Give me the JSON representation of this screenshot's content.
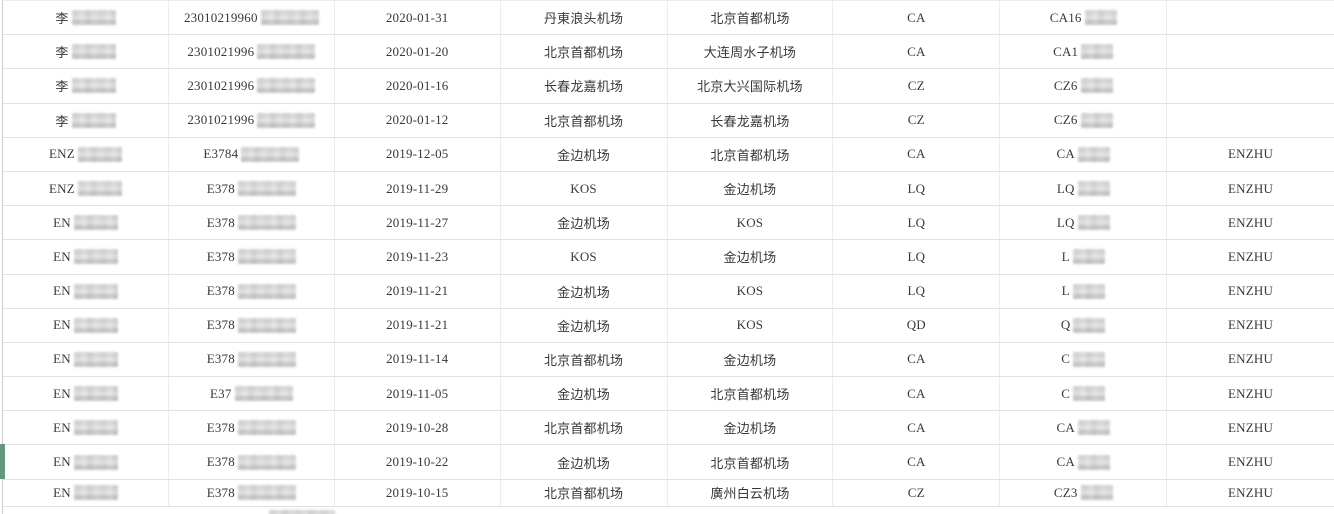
{
  "app": {
    "description": "flight-records-table",
    "colors": {
      "row_marker_green": "#66997b",
      "grid_border": "#e2e2e2",
      "text": "#383838",
      "background": "#ffffff"
    }
  },
  "table": {
    "columns": [
      {
        "key": "name",
        "semantic": "passenger-name"
      },
      {
        "key": "idnum",
        "semantic": "id-number"
      },
      {
        "key": "date",
        "semantic": "flight-date"
      },
      {
        "key": "dep",
        "semantic": "departure-airport"
      },
      {
        "key": "arr",
        "semantic": "arrival-airport"
      },
      {
        "key": "airline",
        "semantic": "airline-code"
      },
      {
        "key": "flight",
        "semantic": "flight-number"
      },
      {
        "key": "agent",
        "semantic": "agent-code"
      }
    ],
    "rows": [
      {
        "name": "李",
        "name_redacted": true,
        "idnum": "23010219960",
        "id_redacted": true,
        "date": "2020-01-31",
        "dep": "丹東浪头机场",
        "arr": "北京首都机场",
        "airline": "CA",
        "flight": "CA16",
        "flight_redacted": true,
        "agent": "",
        "marker": false
      },
      {
        "name": "李",
        "name_redacted": true,
        "idnum": "2301021996",
        "id_redacted": true,
        "date": "2020-01-20",
        "dep": "北京首都机场",
        "arr": "大连周水子机场",
        "airline": "CA",
        "flight": "CA1",
        "flight_redacted": true,
        "agent": "",
        "marker": false
      },
      {
        "name": "李",
        "name_redacted": true,
        "idnum": "2301021996",
        "id_redacted": true,
        "date": "2020-01-16",
        "dep": "长春龙嘉机场",
        "arr": "北京大兴国际机场",
        "airline": "CZ",
        "flight": "CZ6",
        "flight_redacted": true,
        "agent": "",
        "marker": false
      },
      {
        "name": "李",
        "name_redacted": true,
        "idnum": "2301021996",
        "id_redacted": true,
        "date": "2020-01-12",
        "dep": "北京首都机场",
        "arr": "长春龙嘉机场",
        "airline": "CZ",
        "flight": "CZ6",
        "flight_redacted": true,
        "agent": "",
        "marker": false
      },
      {
        "name": "ENZ",
        "name_redacted": true,
        "idnum": "E3784",
        "id_redacted": true,
        "date": "2019-12-05",
        "dep": "金边机场",
        "arr": "北京首都机场",
        "airline": "CA",
        "flight": "CA",
        "flight_redacted": true,
        "agent": "ENZHU",
        "marker": false
      },
      {
        "name": "ENZ",
        "name_redacted": true,
        "idnum": "E378",
        "id_redacted": true,
        "date": "2019-11-29",
        "dep": "KOS",
        "arr": "金边机场",
        "airline": "LQ",
        "flight": "LQ",
        "flight_redacted": true,
        "agent": "ENZHU",
        "marker": false
      },
      {
        "name": "EN",
        "name_redacted": true,
        "idnum": "E378",
        "id_redacted": true,
        "date": "2019-11-27",
        "dep": "金边机场",
        "arr": "KOS",
        "airline": "LQ",
        "flight": "LQ",
        "flight_redacted": true,
        "agent": "ENZHU",
        "marker": false
      },
      {
        "name": "EN",
        "name_redacted": true,
        "idnum": "E378",
        "id_redacted": true,
        "date": "2019-11-23",
        "dep": "KOS",
        "arr": "金边机场",
        "airline": "LQ",
        "flight": "L",
        "flight_redacted": true,
        "agent": "ENZHU",
        "marker": false
      },
      {
        "name": "EN",
        "name_redacted": true,
        "idnum": "E378",
        "id_redacted": true,
        "date": "2019-11-21",
        "dep": "金边机场",
        "arr": "KOS",
        "airline": "LQ",
        "flight": "L",
        "flight_redacted": true,
        "agent": "ENZHU",
        "marker": false
      },
      {
        "name": "EN",
        "name_redacted": true,
        "idnum": "E378",
        "id_redacted": true,
        "date": "2019-11-21",
        "dep": "金边机场",
        "arr": "KOS",
        "airline": "QD",
        "flight": "Q",
        "flight_redacted": true,
        "agent": "ENZHU",
        "marker": false
      },
      {
        "name": "EN",
        "name_redacted": true,
        "idnum": "E378",
        "id_redacted": true,
        "date": "2019-11-14",
        "dep": "北京首都机场",
        "arr": "金边机场",
        "airline": "CA",
        "flight": "C",
        "flight_redacted": true,
        "agent": "ENZHU",
        "marker": false
      },
      {
        "name": "EN",
        "name_redacted": true,
        "idnum": "E37",
        "id_redacted": true,
        "date": "2019-11-05",
        "dep": "金边机场",
        "arr": "北京首都机场",
        "airline": "CA",
        "flight": "C",
        "flight_redacted": true,
        "agent": "ENZHU",
        "marker": false
      },
      {
        "name": "EN",
        "name_redacted": true,
        "idnum": "E378",
        "id_redacted": true,
        "date": "2019-10-28",
        "dep": "北京首都机场",
        "arr": "金边机场",
        "airline": "CA",
        "flight": "CA",
        "flight_redacted": true,
        "agent": "ENZHU",
        "marker": false
      },
      {
        "name": "EN",
        "name_redacted": true,
        "idnum": "E378",
        "id_redacted": true,
        "date": "2019-10-22",
        "dep": "金边机场",
        "arr": "北京首都机场",
        "airline": "CA",
        "flight": "CA",
        "flight_redacted": true,
        "agent": "ENZHU",
        "marker": true
      },
      {
        "name": "EN",
        "name_redacted": true,
        "idnum": "E378",
        "id_redacted": true,
        "date": "2019-10-15",
        "dep": "北京首都机场",
        "arr": "廣州白云机场",
        "airline": "CZ",
        "flight": "CZ3",
        "flight_redacted": true,
        "agent": "ENZHU",
        "marker": false
      }
    ],
    "partial_next_row": {
      "id_redacted": true
    }
  }
}
